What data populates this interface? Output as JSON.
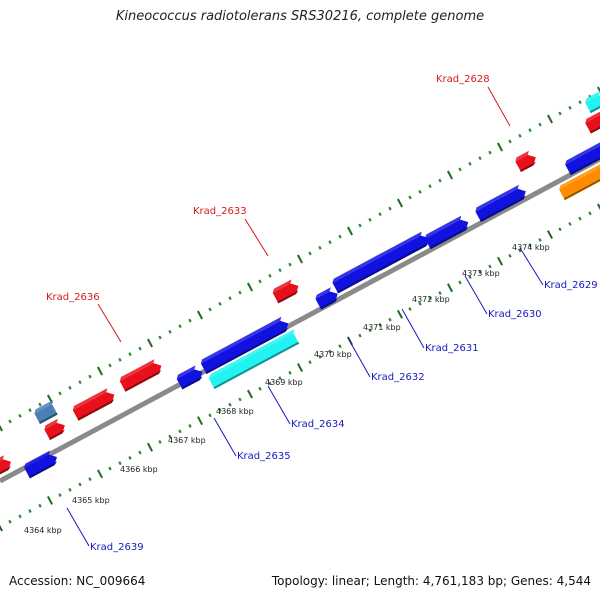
{
  "title": "Kineococcus radiotolerans SRS30216, complete genome",
  "footer": {
    "accession": "Accession: NC_009664",
    "topology": "Topology: linear; Length: 4,761,183 bp; Genes: 4,544"
  },
  "colors": {
    "backbone": "#8a8a8a",
    "tick": "#2e8b2e",
    "red": "#e8101a",
    "blue": "#1212e0",
    "cyan": "#22f2f2",
    "orange": "#ff8c00",
    "steel": "#4a7fb5"
  },
  "scale_ticks": [
    {
      "label": "4364 kbp"
    },
    {
      "label": "4365 kbp"
    },
    {
      "label": "4366 kbp"
    },
    {
      "label": "4367 kbp"
    },
    {
      "label": "4368 kbp"
    },
    {
      "label": "4369 kbp"
    },
    {
      "label": "4370 kbp"
    },
    {
      "label": "4371 kbp"
    },
    {
      "label": "4372 kbp"
    },
    {
      "label": "4373 kbp"
    },
    {
      "label": "4374 kbp"
    }
  ],
  "gene_labels": [
    {
      "name": "Krad_2628",
      "color": "red"
    },
    {
      "name": "Krad_2633",
      "color": "red"
    },
    {
      "name": "Krad_2636",
      "color": "red"
    },
    {
      "name": "Krad_2629",
      "color": "blue"
    },
    {
      "name": "Krad_2630",
      "color": "blue"
    },
    {
      "name": "Krad_2631",
      "color": "blue"
    },
    {
      "name": "Krad_2632",
      "color": "blue"
    },
    {
      "name": "Krad_2634",
      "color": "blue"
    },
    {
      "name": "Krad_2635",
      "color": "blue"
    },
    {
      "name": "Krad_2639",
      "color": "blue"
    }
  ]
}
